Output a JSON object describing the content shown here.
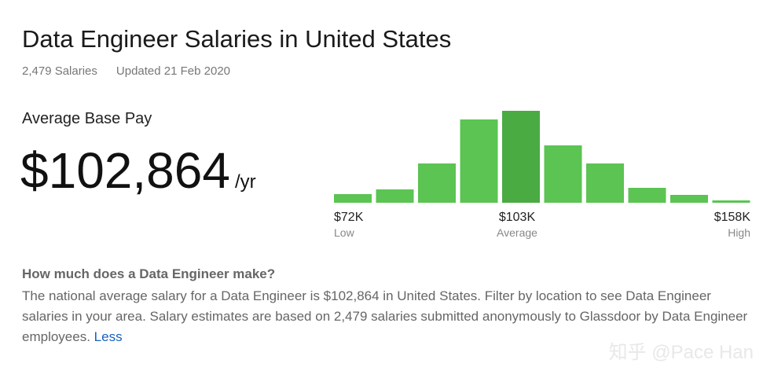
{
  "header": {
    "title": "Data Engineer Salaries in United States",
    "count": "2,479 Salaries",
    "updated": "Updated 21 Feb 2020"
  },
  "pay": {
    "label": "Average Base Pay",
    "amount": "$102,864",
    "unit": "/yr"
  },
  "chart_data": {
    "type": "bar",
    "values": [
      11,
      17,
      50,
      106,
      117,
      73,
      50,
      19,
      10,
      3
    ],
    "colors": [
      "#5bc453",
      "#5bc453",
      "#5bc453",
      "#5bc453",
      "#4aab43",
      "#5bc453",
      "#5bc453",
      "#5bc453",
      "#5bc453",
      "#5bc453"
    ],
    "ylim": [
      0,
      120
    ],
    "markers": [
      {
        "value": "$72K",
        "label": "Low"
      },
      {
        "value": "$103K",
        "label": "Average"
      },
      {
        "value": "$158K",
        "label": "High"
      }
    ]
  },
  "info": {
    "question": "How much does a Data Engineer make?",
    "text": "The national average salary for a Data Engineer is $102,864 in United States. Filter by location to see Data Engineer salaries in your area. Salary estimates are based on 2,479 salaries submitted anonymously to Glassdoor by Data Engineer employees.",
    "link": "Less"
  },
  "watermark": "知乎 @Pace Han"
}
